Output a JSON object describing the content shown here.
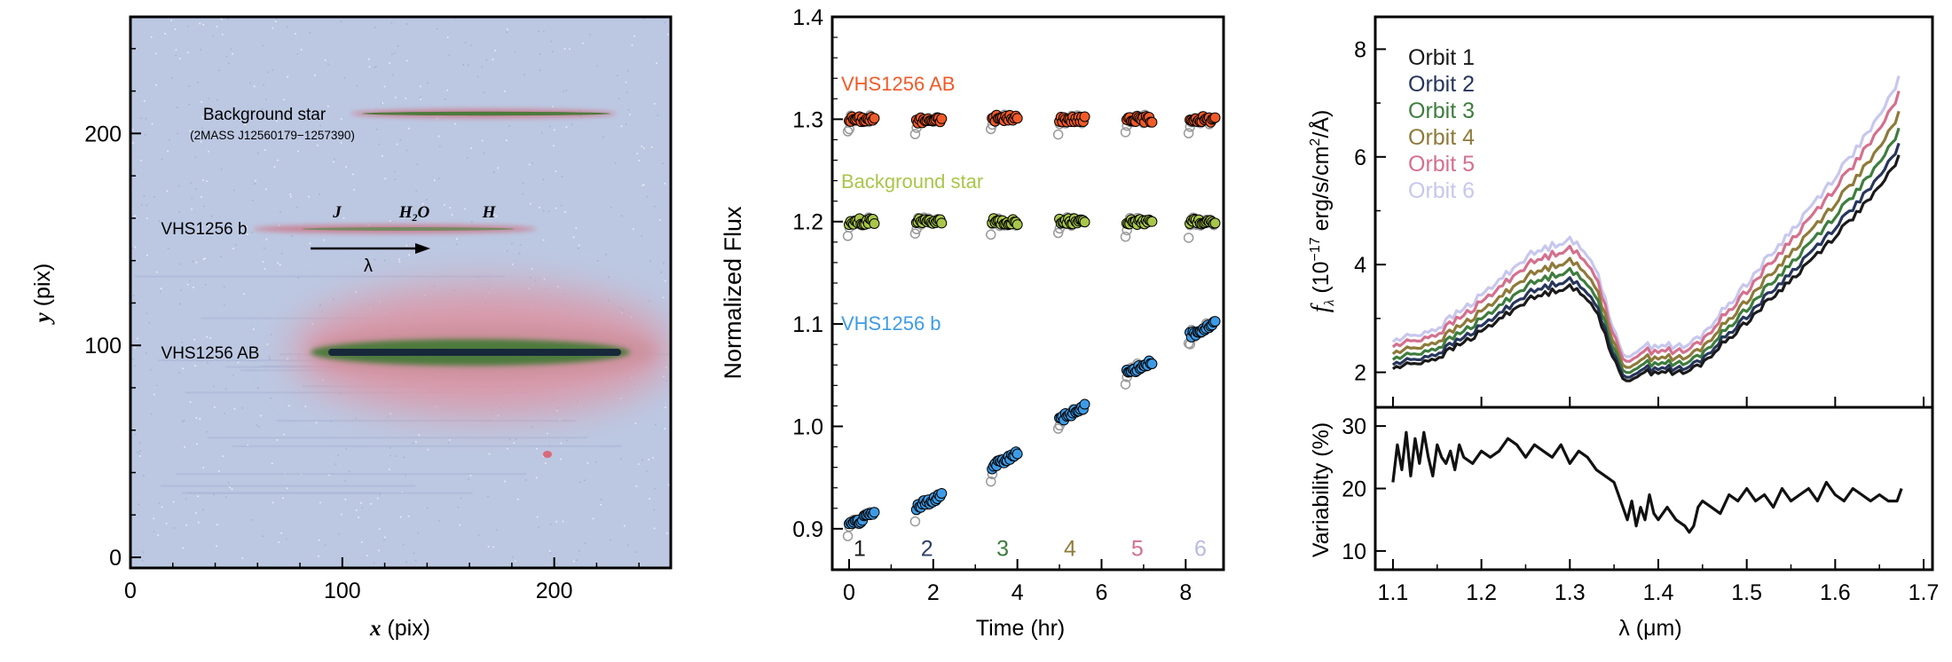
{
  "chart_data": [
    {
      "type": "image",
      "xlabel_var": "x",
      "xlabel_unit": " (pix)",
      "ylabel_var": "y",
      "ylabel_unit": " (pix)",
      "xlim": [
        0,
        255
      ],
      "ylim": [
        -5,
        255
      ],
      "xticks": [
        0,
        100,
        200
      ],
      "yticks": [
        0,
        100,
        200
      ],
      "colors": {
        "background": "#bcc8e2",
        "halo": "#d99aaa",
        "trace_core": "#17283a",
        "trace_green": "#4e7a3c"
      },
      "annotations": {
        "background_star": "Background star",
        "background_star_id": "(2MASS J12560179−1257390)",
        "companion": "VHS1256 b",
        "host": "VHS1256 AB",
        "band_j": "J",
        "band_h2o_main": "H",
        "band_h2o_sub": "2",
        "band_h2o_tail": "O",
        "band_h": "H",
        "lambda_arrow": "λ"
      },
      "traces": [
        {
          "name": "Background star",
          "x": [
            110,
            240
          ],
          "y": 210
        },
        {
          "name": "VHS1256 b",
          "x": [
            60,
            200
          ],
          "y": 156
        },
        {
          "name": "VHS1256 AB",
          "x": [
            75,
            250
          ],
          "y": 97
        }
      ]
    },
    {
      "type": "scatter",
      "ylabel": "Normalized Flux",
      "xlabel": "Time (hr)",
      "xlim": [
        -0.4,
        8.9
      ],
      "ylim": [
        0.86,
        1.4
      ],
      "xticks": [
        0,
        2,
        4,
        6,
        8
      ],
      "yticks": [
        0.9,
        1.0,
        1.1,
        1.2,
        1.3,
        1.4
      ],
      "series": [
        {
          "name": "VHS1256 AB",
          "color": "#f05a28",
          "orbit_values": [
            1.3,
            1.299,
            1.301,
            1.3,
            1.3,
            1.3
          ]
        },
        {
          "name": "Background star",
          "color": "#a8c64a",
          "orbit_values": [
            1.2,
            1.2,
            1.2,
            1.2,
            1.2,
            1.2
          ]
        },
        {
          "name": "VHS1256 b",
          "color": "#3d9be6",
          "orbit_values": [
            0.909,
            0.927,
            0.967,
            1.013,
            1.058,
            1.095
          ]
        }
      ],
      "orbit_starts": [
        0.0,
        1.6,
        3.4,
        5.0,
        6.6,
        8.1
      ],
      "orbit_labels": [
        "1",
        "2",
        "3",
        "4",
        "5",
        "6"
      ],
      "orbit_label_colors": [
        "#1a1a1a",
        "#2e3f66",
        "#3e7d3e",
        "#8e7a3a",
        "#d4708e",
        "#b8b8e2"
      ]
    },
    {
      "type": "line",
      "ylabel_parts": {
        "f": "f",
        "sub": "λ",
        "paren": " (10",
        "exp": "−17",
        "unit": " erg/s/cm",
        "sq": "2",
        "end": "/Å)"
      },
      "xlim": [
        1.08,
        1.71
      ],
      "ylim": [
        1.35,
        8.6
      ],
      "yticks": [
        2,
        4,
        6,
        8
      ],
      "series": [
        {
          "name": "Orbit 1",
          "color": "#1a1a1a",
          "scale": 0.965
        },
        {
          "name": "Orbit 2",
          "color": "#27365c",
          "scale": 1.0
        },
        {
          "name": "Orbit 3",
          "color": "#3e7d3e",
          "scale": 1.045
        },
        {
          "name": "Orbit 4",
          "color": "#8e7a3a",
          "scale": 1.095
        },
        {
          "name": "Orbit 5",
          "color": "#d4708e",
          "scale": 1.155
        },
        {
          "name": "Orbit 6",
          "color": "#c7c7ee",
          "scale": 1.2
        }
      ],
      "x": [
        1.1,
        1.15,
        1.2,
        1.25,
        1.3,
        1.33,
        1.35,
        1.36,
        1.38,
        1.4,
        1.43,
        1.45,
        1.5,
        1.55,
        1.6,
        1.65,
        1.675
      ],
      "y": [
        2.15,
        2.35,
        2.85,
        3.45,
        3.75,
        3.3,
        2.3,
        1.9,
        2.05,
        2.1,
        2.05,
        2.25,
        3.05,
        3.85,
        4.7,
        5.6,
        6.3
      ]
    },
    {
      "type": "line",
      "ylabel": "Variability (%)",
      "xlabel": "λ (μm)",
      "xlim": [
        1.08,
        1.71
      ],
      "ylim": [
        7,
        33
      ],
      "xticks": [
        1.1,
        1.2,
        1.3,
        1.4,
        1.5,
        1.6,
        1.7
      ],
      "yticks": [
        10,
        20,
        30
      ],
      "x": [
        1.1,
        1.105,
        1.11,
        1.115,
        1.12,
        1.125,
        1.13,
        1.135,
        1.14,
        1.145,
        1.15,
        1.155,
        1.16,
        1.165,
        1.17,
        1.175,
        1.18,
        1.19,
        1.2,
        1.21,
        1.22,
        1.23,
        1.24,
        1.25,
        1.26,
        1.27,
        1.28,
        1.29,
        1.3,
        1.31,
        1.32,
        1.33,
        1.34,
        1.35,
        1.355,
        1.36,
        1.365,
        1.37,
        1.375,
        1.38,
        1.385,
        1.39,
        1.395,
        1.4,
        1.41,
        1.42,
        1.43,
        1.435,
        1.44,
        1.445,
        1.45,
        1.46,
        1.47,
        1.48,
        1.49,
        1.5,
        1.51,
        1.52,
        1.53,
        1.54,
        1.55,
        1.56,
        1.57,
        1.58,
        1.59,
        1.6,
        1.61,
        1.62,
        1.63,
        1.64,
        1.65,
        1.66,
        1.67,
        1.675
      ],
      "y": [
        21,
        27,
        23,
        29,
        22,
        28,
        24,
        29,
        25,
        22,
        27,
        25,
        24,
        26,
        23,
        27,
        25,
        24,
        26,
        25,
        26,
        28,
        27,
        25,
        27,
        26,
        25,
        27,
        24,
        26,
        25,
        23,
        22,
        21,
        19,
        17,
        15,
        18,
        14,
        17,
        15,
        19,
        16,
        15,
        17,
        15,
        14,
        13,
        14,
        17,
        18,
        17,
        16,
        19,
        18,
        20,
        18,
        19,
        17,
        20,
        18,
        19,
        20,
        18,
        21,
        19,
        18,
        20,
        19,
        18,
        19,
        18,
        18,
        20
      ]
    }
  ]
}
